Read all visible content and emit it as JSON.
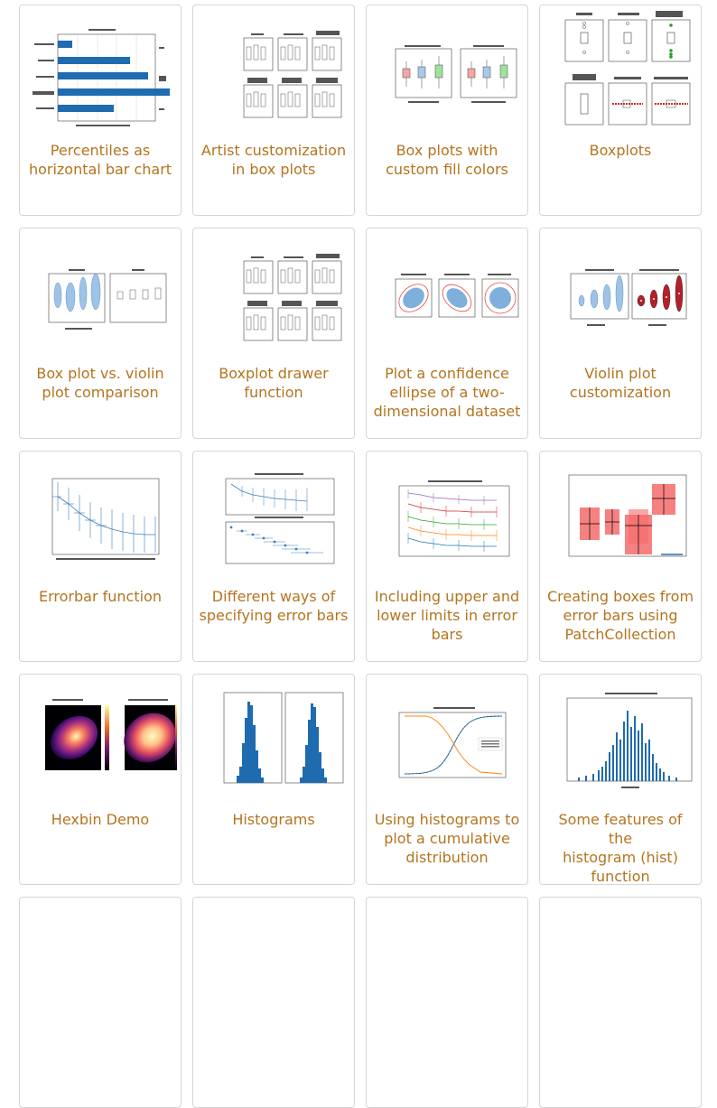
{
  "accent_color": "#b4741f",
  "cards": [
    {
      "title": "Percentiles as\nhorizontal bar chart",
      "thumb": "percentiles-bar-chart-thumbnail"
    },
    {
      "title": "Artist customization\nin box plots",
      "thumb": "artist-customization-boxplot-thumbnail"
    },
    {
      "title": "Box plots with\ncustom fill colors",
      "thumb": "boxplot-fill-colors-thumbnail"
    },
    {
      "title": "Boxplots",
      "thumb": "boxplots-thumbnail"
    },
    {
      "title": "Box plot vs. violin\nplot comparison",
      "thumb": "boxplot-violin-comparison-thumbnail"
    },
    {
      "title": "Boxplot drawer\nfunction",
      "thumb": "boxplot-drawer-thumbnail"
    },
    {
      "title": "Plot a confidence\nellipse of a two-\ndimensional dataset",
      "thumb": "confidence-ellipse-thumbnail"
    },
    {
      "title": "Violin plot\ncustomization",
      "thumb": "violin-customization-thumbnail"
    },
    {
      "title": "Errorbar function",
      "thumb": "errorbar-function-thumbnail"
    },
    {
      "title": "Different ways of\nspecifying error bars",
      "thumb": "errorbar-specification-thumbnail"
    },
    {
      "title": "Including upper and\nlower limits in error\nbars",
      "thumb": "errorbar-limits-thumbnail"
    },
    {
      "title": "Creating boxes from\nerror bars using\nPatchCollection",
      "thumb": "errorbar-boxes-thumbnail"
    },
    {
      "title": "Hexbin Demo",
      "thumb": "hexbin-demo-thumbnail"
    },
    {
      "title": "Histograms",
      "thumb": "histograms-thumbnail"
    },
    {
      "title": "Using histograms to\nplot a cumulative\ndistribution",
      "thumb": "cumulative-histogram-thumbnail"
    },
    {
      "title": "Some features of the\nhistogram (hist)\nfunction",
      "thumb": "histogram-features-thumbnail"
    }
  ]
}
